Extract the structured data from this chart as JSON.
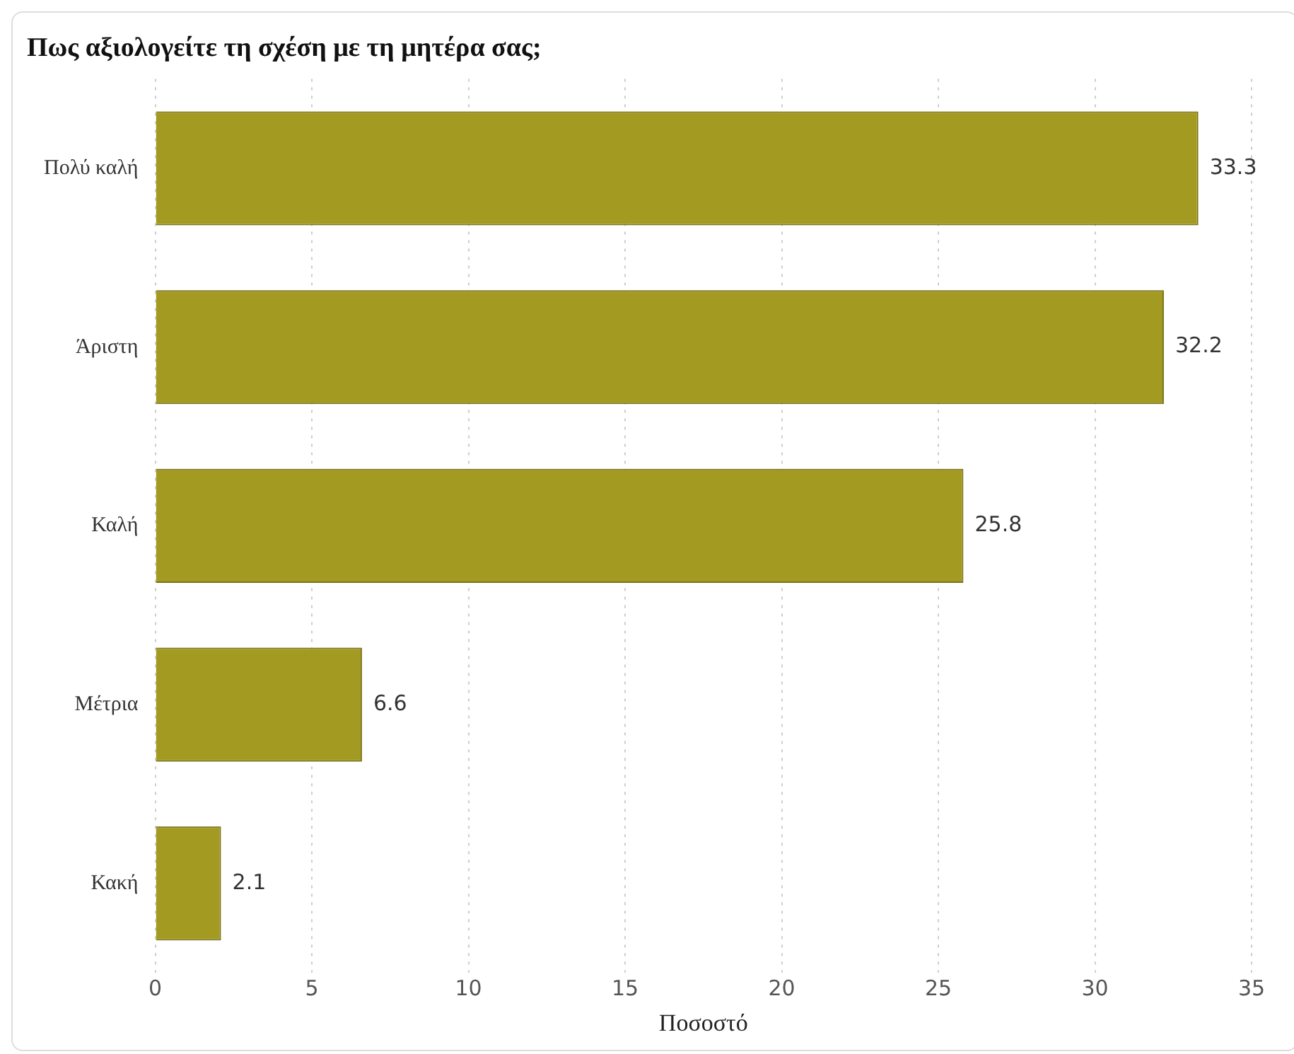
{
  "chart_data": {
    "type": "bar",
    "orientation": "horizontal",
    "title": "Πως αξιολογείτε τη σχέση με τη μητέρα σας;",
    "xlabel": "Ποσοστό",
    "categories": [
      "Πολύ καλή",
      "Άριστη",
      "Καλή",
      "Μέτρια",
      "Κακή"
    ],
    "values": [
      33.3,
      32.2,
      25.8,
      6.6,
      2.1
    ],
    "color": "#a39a22",
    "xlim": [
      0,
      35
    ],
    "xticks": [
      0,
      5,
      10,
      15,
      20,
      25,
      30,
      35
    ],
    "grid": "x",
    "data_labels": true
  }
}
